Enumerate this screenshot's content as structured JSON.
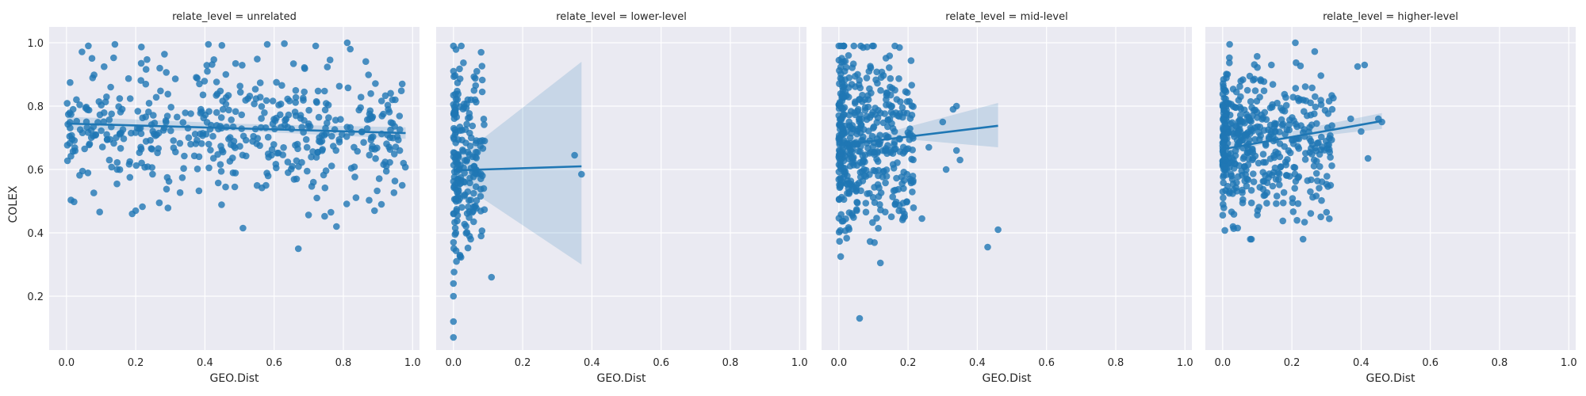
{
  "chart_data": {
    "type": "scatter",
    "style": "facet grid of scatter plots with linear regression fits and 95% confidence bands",
    "colors": {
      "points": "#1f77b4",
      "panel_background": "#eaeaf2",
      "grid": "#ffffff",
      "band": "#1f77b4"
    },
    "grid": true,
    "shared_y_axis": true,
    "ylabel": "COLEX",
    "ylim": [
      0.03,
      1.05
    ],
    "yticks": [
      "0.2",
      "0.4",
      "0.6",
      "0.8",
      "1.0"
    ],
    "ytick_values": [
      0.2,
      0.4,
      0.6,
      0.8,
      1.0
    ],
    "xlim": [
      -0.05,
      1.02
    ],
    "xticks": [
      "0.0",
      "0.2",
      "0.4",
      "0.6",
      "0.8",
      "1.0"
    ],
    "xtick_values": [
      0.0,
      0.2,
      0.4,
      0.6,
      0.8,
      1.0
    ],
    "panels": [
      {
        "title": "relate_level = unrelated",
        "xlabel": "GEO.Dist",
        "point_cloud": {
          "n": 480,
          "x_range": [
            0.0,
            0.98
          ],
          "y_mean": 0.73,
          "y_sd": 0.11,
          "y_range": [
            0.35,
            1.0
          ]
        },
        "points": [
          {
            "x": 0.14,
            "y": 0.995
          },
          {
            "x": 0.41,
            "y": 0.995
          },
          {
            "x": 0.58,
            "y": 0.995
          },
          {
            "x": 0.51,
            "y": 0.415
          },
          {
            "x": 0.67,
            "y": 0.35
          },
          {
            "x": 0.19,
            "y": 0.46
          },
          {
            "x": 0.2,
            "y": 0.47
          },
          {
            "x": 0.78,
            "y": 0.42
          },
          {
            "x": 0.89,
            "y": 0.47
          },
          {
            "x": 0.91,
            "y": 0.49
          },
          {
            "x": 0.97,
            "y": 0.55
          },
          {
            "x": 0.97,
            "y": 0.87
          },
          {
            "x": 0.95,
            "y": 0.82
          },
          {
            "x": 0.82,
            "y": 0.98
          },
          {
            "x": 0.72,
            "y": 0.99
          }
        ],
        "regression": {
          "x": [
            0.0,
            0.98
          ],
          "y": [
            0.745,
            0.715
          ]
        },
        "ci_band": {
          "x": [
            0.0,
            0.5,
            0.98
          ],
          "lower": [
            0.725,
            0.722,
            0.697
          ],
          "upper": [
            0.767,
            0.744,
            0.733
          ]
        }
      },
      {
        "title": "relate_level = lower-level",
        "xlabel": "GEO.Dist",
        "point_cloud": {
          "n": 200,
          "x_range": [
            0.0,
            0.09
          ],
          "y_mean": 0.62,
          "y_sd": 0.16,
          "y_range": [
            0.07,
            0.99
          ]
        },
        "points": [
          {
            "x": 0.0,
            "y": 0.07
          },
          {
            "x": 0.0,
            "y": 0.12
          },
          {
            "x": 0.0,
            "y": 0.2
          },
          {
            "x": 0.0,
            "y": 0.24
          },
          {
            "x": 0.11,
            "y": 0.26
          },
          {
            "x": 0.08,
            "y": 0.39
          },
          {
            "x": 0.05,
            "y": 0.38
          },
          {
            "x": 0.09,
            "y": 0.69
          },
          {
            "x": 0.08,
            "y": 0.97
          },
          {
            "x": 0.06,
            "y": 0.61
          },
          {
            "x": 0.35,
            "y": 0.645
          },
          {
            "x": 0.37,
            "y": 0.585
          },
          {
            "x": 0.0,
            "y": 0.99
          }
        ],
        "regression": {
          "x": [
            0.0,
            0.37
          ],
          "y": [
            0.597,
            0.61
          ]
        },
        "ci_band": {
          "x": [
            0.0,
            0.37
          ],
          "lower": [
            0.57,
            0.3
          ],
          "upper": [
            0.625,
            0.94
          ]
        }
      },
      {
        "title": "relate_level = mid-level",
        "xlabel": "GEO.Dist",
        "point_cloud": {
          "n": 460,
          "x_range": [
            0.0,
            0.22
          ],
          "y_mean": 0.69,
          "y_sd": 0.14,
          "y_range": [
            0.13,
            0.99
          ]
        },
        "points": [
          {
            "x": 0.06,
            "y": 0.13
          },
          {
            "x": 0.12,
            "y": 0.305
          },
          {
            "x": 0.43,
            "y": 0.355
          },
          {
            "x": 0.46,
            "y": 0.41
          },
          {
            "x": 0.24,
            "y": 0.445
          },
          {
            "x": 0.35,
            "y": 0.63
          },
          {
            "x": 0.31,
            "y": 0.6
          },
          {
            "x": 0.34,
            "y": 0.8
          },
          {
            "x": 0.33,
            "y": 0.79
          },
          {
            "x": 0.34,
            "y": 0.66
          },
          {
            "x": 0.3,
            "y": 0.75
          },
          {
            "x": 0.26,
            "y": 0.67
          },
          {
            "x": 0.0,
            "y": 0.99
          },
          {
            "x": 0.07,
            "y": 0.985
          }
        ],
        "regression": {
          "x": [
            0.0,
            0.46
          ],
          "y": [
            0.677,
            0.738
          ]
        },
        "ci_band": {
          "x": [
            0.0,
            0.15,
            0.46
          ],
          "lower": [
            0.66,
            0.7,
            0.67
          ],
          "upper": [
            0.694,
            0.72,
            0.81
          ]
        }
      },
      {
        "title": "relate_level = higher-level",
        "xlabel": "GEO.Dist",
        "point_cloud": {
          "n": 470,
          "x_range": [
            0.0,
            0.32
          ],
          "y_mean": 0.68,
          "y_sd": 0.11,
          "y_range": [
            0.38,
            1.0
          ]
        },
        "points": [
          {
            "x": 0.02,
            "y": 0.995
          },
          {
            "x": 0.21,
            "y": 1.0
          },
          {
            "x": 0.41,
            "y": 0.93
          },
          {
            "x": 0.39,
            "y": 0.925
          },
          {
            "x": 0.46,
            "y": 0.75
          },
          {
            "x": 0.45,
            "y": 0.76
          },
          {
            "x": 0.42,
            "y": 0.635
          },
          {
            "x": 0.08,
            "y": 0.38
          },
          {
            "x": 0.03,
            "y": 0.42
          },
          {
            "x": 0.3,
            "y": 0.465
          },
          {
            "x": 0.37,
            "y": 0.76
          },
          {
            "x": 0.4,
            "y": 0.72
          }
        ],
        "regression": {
          "x": [
            0.0,
            0.46
          ],
          "y": [
            0.664,
            0.753
          ]
        },
        "ci_band": {
          "x": [
            0.0,
            0.15,
            0.46
          ],
          "lower": [
            0.645,
            0.69,
            0.728
          ],
          "upper": [
            0.683,
            0.71,
            0.778
          ]
        }
      }
    ]
  }
}
